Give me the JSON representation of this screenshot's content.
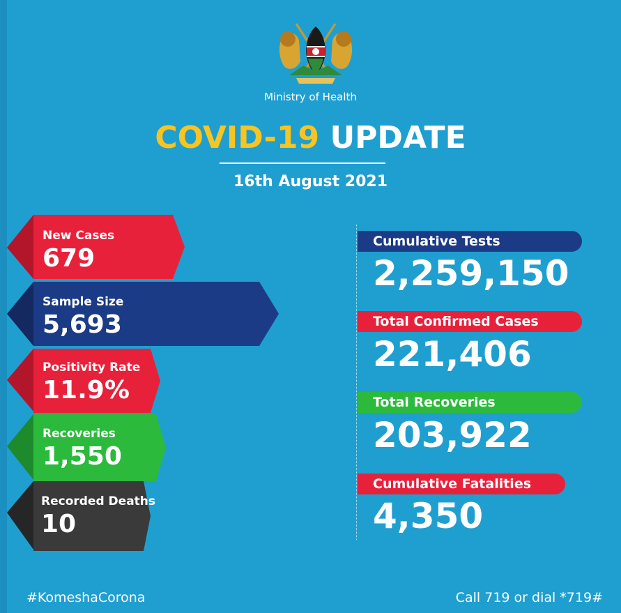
{
  "header": {
    "ministry": "Ministry of Health",
    "title_part1": "COVID-19",
    "title_part2": "UPDATE",
    "date": "16th August 2021"
  },
  "left_stats": [
    {
      "label": "New Cases",
      "value": "679",
      "color": "#e8213b"
    },
    {
      "label": "Sample Size",
      "value": "5,693",
      "color": "#1c3b86"
    },
    {
      "label": "Positivity Rate",
      "value": "11.9%",
      "color": "#e8213b"
    },
    {
      "label": "Recoveries",
      "value": "1,550",
      "color": "#2bba3c"
    },
    {
      "label": "Recorded Deaths",
      "value": "10",
      "color": "#3a3a3a"
    }
  ],
  "right_stats": [
    {
      "label": "Cumulative Tests",
      "value": "2,259,150",
      "color": "#1c3b86"
    },
    {
      "label": "Total Confirmed Cases",
      "value": "221,406",
      "color": "#e8213b"
    },
    {
      "label": "Total Recoveries",
      "value": "203,922",
      "color": "#2bba3c"
    },
    {
      "label": "Cumulative Fatalities",
      "value": "4,350",
      "color": "#e8213b"
    }
  ],
  "footer": {
    "hashtag": "#KomeshaCorona",
    "call": "Call 719 or dial *719#"
  },
  "colors": {
    "background": "#1f9fd0",
    "accent_yellow": "#f7c523"
  },
  "icons": {
    "crest": "kenya-coat-of-arms-icon"
  }
}
